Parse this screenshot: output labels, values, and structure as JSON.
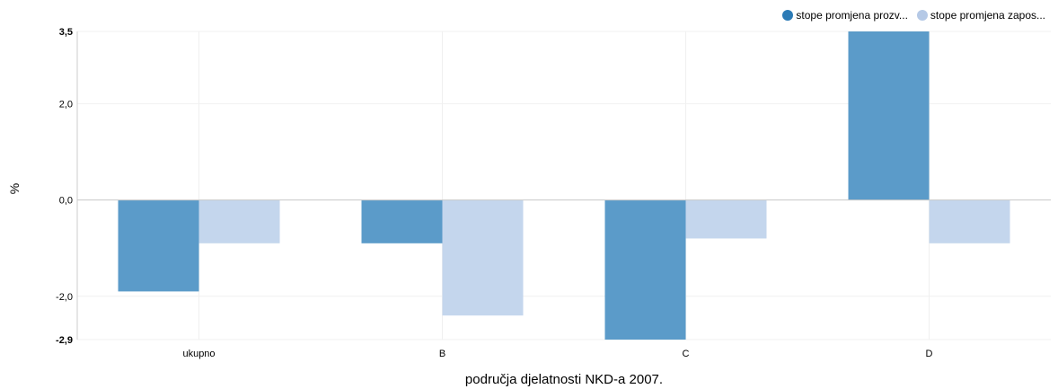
{
  "chart_data": {
    "type": "bar",
    "title": "",
    "xlabel": "područja djelatnosti NKD-a 2007.",
    "ylabel": "%",
    "categories": [
      "ukupno",
      "B",
      "C",
      "D"
    ],
    "series": [
      {
        "name": "stope promjena prozv...",
        "values": [
          -1.9,
          -0.9,
          -2.9,
          3.5
        ],
        "color": "#5b9bc9"
      },
      {
        "name": "stope promjena zapos...",
        "values": [
          -0.9,
          -2.4,
          -0.8,
          -0.9
        ],
        "color": "#c4d6ed"
      }
    ],
    "ylim": [
      -2.9,
      3.5
    ],
    "yticks": [
      {
        "value": 3.5,
        "label": "3,5",
        "bold": true
      },
      {
        "value": 2.0,
        "label": "2,0",
        "bold": false
      },
      {
        "value": 0.0,
        "label": "0,0",
        "bold": false
      },
      {
        "value": -2.0,
        "label": "-2,0",
        "bold": false
      },
      {
        "value": -2.9,
        "label": "-2,9",
        "bold": true
      }
    ],
    "grid": true,
    "legend_position": "top-right"
  },
  "legend": {
    "items": [
      {
        "label": "stope promjena prozv...",
        "color": "#2c7bb6"
      },
      {
        "label": "stope promjena zapos...",
        "color": "#b5c9e6"
      }
    ]
  }
}
